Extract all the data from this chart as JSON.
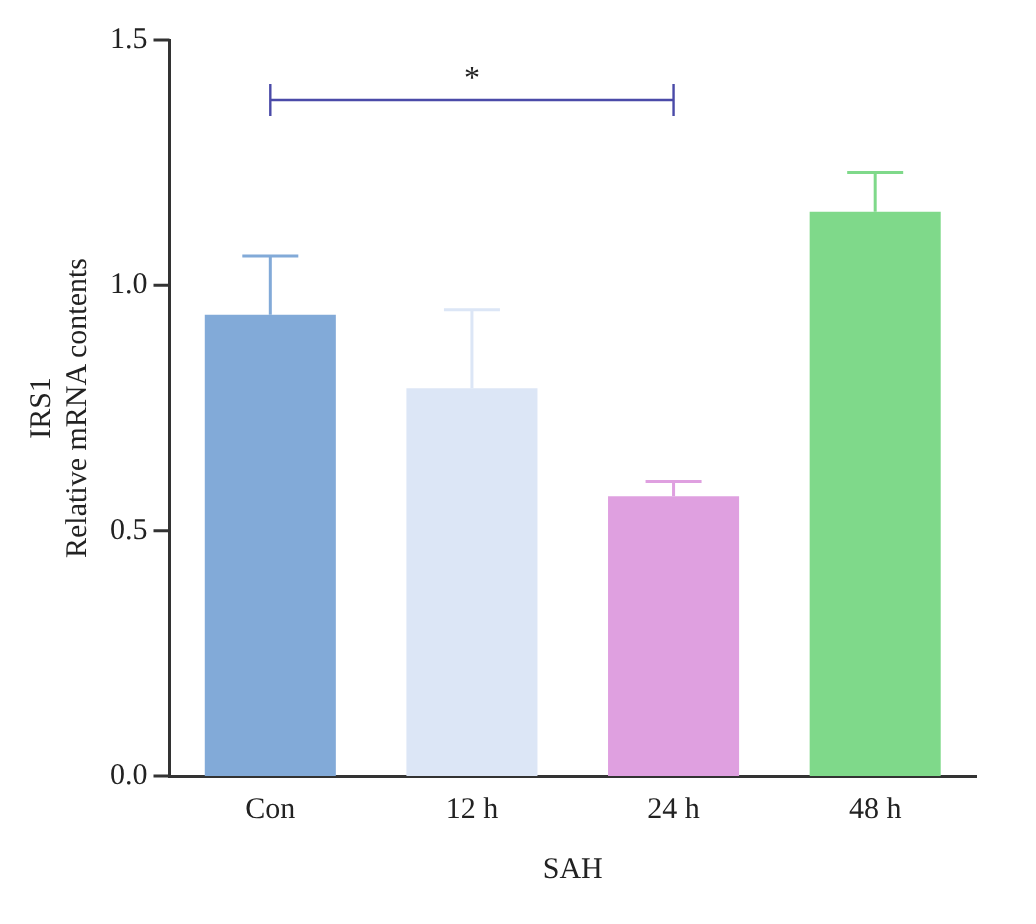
{
  "chart_data": {
    "type": "bar",
    "xlabel": "SAH",
    "ylabel": "IRS1\nRelative mRNA contents",
    "categories": [
      "Con",
      "12 h",
      "24 h",
      "48 h"
    ],
    "values": [
      0.94,
      0.79,
      0.57,
      1.15
    ],
    "errors": [
      0.12,
      0.16,
      0.03,
      0.08
    ],
    "colors": [
      "#82aad8",
      "#dce6f6",
      "#dfa0e0",
      "#7fd98a"
    ],
    "ylim": [
      0,
      1.5
    ],
    "yticks": [
      {
        "value": 0,
        "label": "0.0"
      },
      {
        "value": 0.5,
        "label": "0.5"
      },
      {
        "value": 1,
        "label": "1.0"
      },
      {
        "value": 1.5,
        "label": "1.5"
      }
    ],
    "grid": false,
    "legend": false,
    "annotations": [
      "*"
    ]
  }
}
